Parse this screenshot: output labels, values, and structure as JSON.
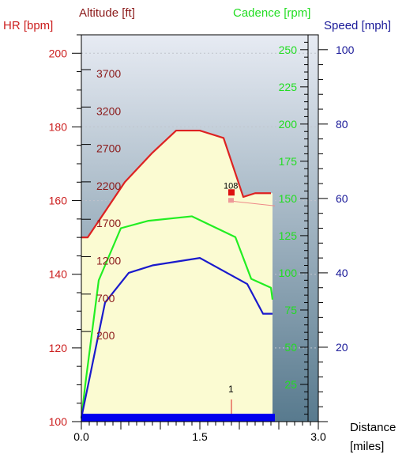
{
  "chart_data": {
    "type": "line",
    "axes": {
      "hr": {
        "label": "HR [bpm]",
        "ticks": [
          "200",
          "180",
          "160",
          "140",
          "120",
          "100"
        ],
        "range": [
          100,
          205
        ],
        "color": "#cc1f1f"
      },
      "altitude": {
        "label": "Altitude [ft]",
        "ticks": [
          "3700",
          "3200",
          "2700",
          "2200",
          "1700",
          "1200",
          "700",
          "200"
        ],
        "color": "#8b1a1a"
      },
      "cadence": {
        "label": "Cadence [rpm]",
        "ticks": [
          "250",
          "225",
          "200",
          "175",
          "150",
          "125",
          "100",
          "75",
          "50",
          "25"
        ],
        "range": [
          0,
          260
        ],
        "color": "#22dd22"
      },
      "speed": {
        "label": "Speed [mph]",
        "ticks": [
          "100",
          "80",
          "60",
          "40",
          "20"
        ],
        "range": [
          0,
          104
        ],
        "color": "#1a1a99"
      },
      "distance": {
        "label_line1": "Distance",
        "label_line2": "[miles]",
        "ticks": [
          "0.0",
          "1.5",
          "3.0"
        ],
        "range": [
          0,
          3.0
        ]
      }
    },
    "series": [
      {
        "name": "HR",
        "color": "#dd2222",
        "x": [
          0.0,
          0.08,
          0.55,
          0.9,
          1.2,
          1.5,
          1.8,
          2.05,
          2.2,
          2.4
        ],
        "values": [
          150,
          150,
          165,
          173,
          179,
          179,
          177,
          161,
          162,
          162
        ]
      },
      {
        "name": "Cadence",
        "color": "#22ee22",
        "x": [
          0.0,
          0.05,
          0.22,
          0.5,
          0.85,
          1.4,
          1.95,
          2.15,
          2.4,
          2.42
        ],
        "values": [
          2,
          25,
          95,
          130,
          135,
          138,
          124,
          96,
          90,
          82
        ]
      },
      {
        "name": "Speed",
        "color": "#1a1acc",
        "x": [
          0.0,
          0.3,
          0.6,
          0.9,
          1.5,
          2.1,
          2.3,
          2.42
        ],
        "values": [
          1,
          32,
          40,
          42,
          44,
          37,
          29,
          29
        ]
      }
    ],
    "altitude_profile": {
      "x": [
        0.0,
        0.08,
        0.55,
        0.9,
        1.2,
        1.5,
        1.8,
        2.05,
        2.2,
        2.42
      ],
      "hr_equiv": [
        150,
        150,
        165,
        173,
        179,
        179,
        177,
        161,
        162,
        162
      ]
    },
    "lap_marker": {
      "label": "1",
      "x": 1.9
    },
    "highlight_point": {
      "label": "108",
      "x": 1.9,
      "hr": 162
    },
    "fill_color": "#fbfbd2",
    "plot_bg_top": "#e7ebf3",
    "plot_bg_bottom": "#587a8e",
    "speed_bar_color": "#0000ee"
  }
}
